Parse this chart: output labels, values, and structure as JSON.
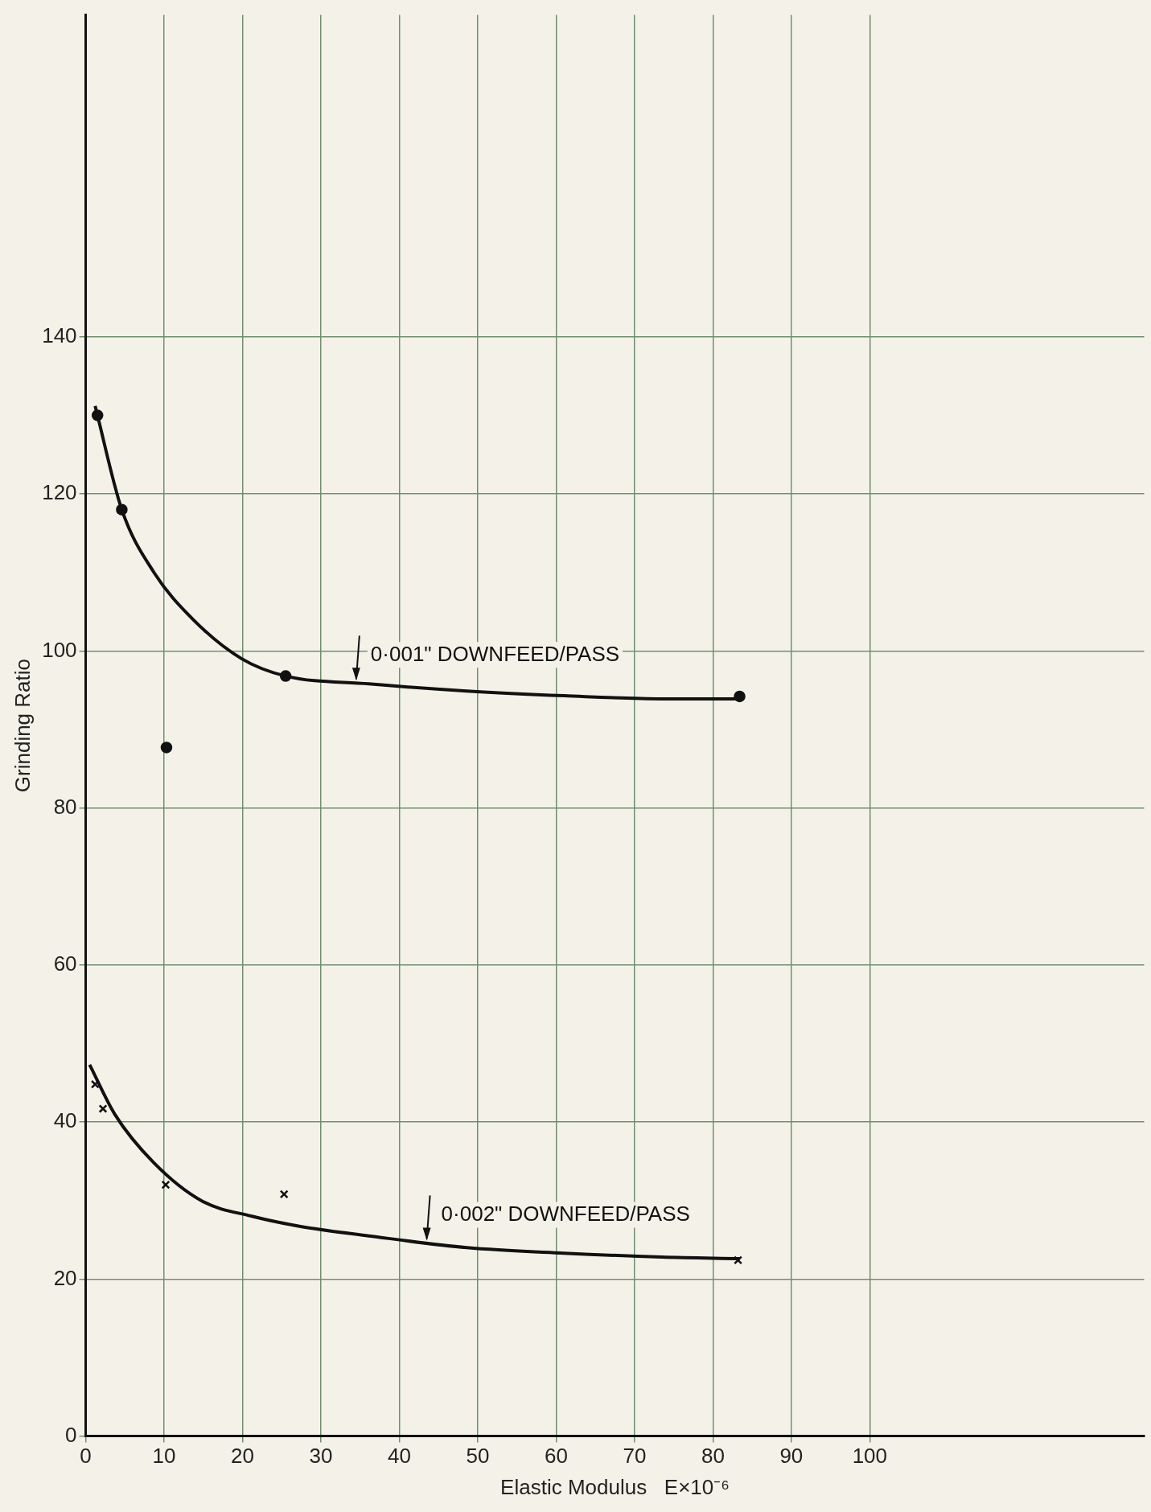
{
  "chart_data": {
    "type": "scatter",
    "xlabel": "Elastic Modulus   E×10⁻⁶",
    "ylabel": "Grinding Ratio",
    "xlim": [
      0,
      135
    ],
    "ylim": [
      0,
      181
    ],
    "xticks": [
      0,
      10,
      20,
      30,
      40,
      50,
      60,
      70,
      80,
      90,
      100
    ],
    "yticks": [
      0,
      20,
      40,
      60,
      80,
      100,
      120,
      140
    ],
    "grid": true,
    "legend": false,
    "series": [
      {
        "type": "scatter",
        "marker": "circle",
        "color": "#111111",
        "x": [
          1.5,
          4.6,
          10.3,
          25.5,
          83.4
        ],
        "values": [
          130,
          118,
          87.7,
          96.8,
          94.2
        ]
      },
      {
        "type": "scatter",
        "marker": "cross",
        "color": "#111111",
        "x": [
          1.2,
          2.2,
          10.2,
          25.3,
          83.2
        ],
        "values": [
          44.8,
          41.7,
          32,
          30.8,
          22.4
        ]
      },
      {
        "type": "line",
        "marker": "none",
        "color": "#111111",
        "x": [
          1.2,
          4.6,
          8.7,
          13.7,
          19.9,
          25.5,
          36.1,
          48.6,
          61,
          73.5,
          83.4
        ],
        "values": [
          131.2,
          118,
          110,
          104,
          99,
          96.8,
          95.8,
          94.9,
          94.3,
          93.9,
          93.9
        ]
      },
      {
        "type": "line",
        "marker": "none",
        "color": "#111111",
        "x": [
          0.5,
          3.7,
          8.7,
          14.9,
          21.2,
          27.4,
          36.1,
          48.6,
          61,
          73.5,
          83.4
        ],
        "values": [
          47.3,
          41,
          34.8,
          29.9,
          28,
          26.7,
          25.5,
          24,
          23.3,
          22.8,
          22.6
        ]
      }
    ],
    "annotations": [
      {
        "text": "0·001\" DOWNFEED/PASS",
        "x": 34.5,
        "y": 95.8
      },
      {
        "text": "0·002\" DOWNFEED/PASS",
        "x": 43.5,
        "y": 24.5
      }
    ]
  }
}
